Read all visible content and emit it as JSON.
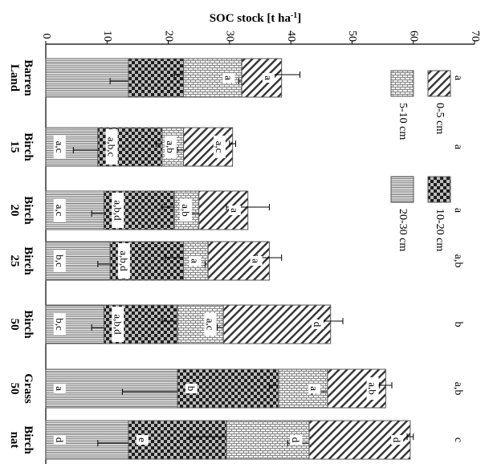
{
  "chart_data": {
    "type": "bar",
    "stacked": true,
    "orientation": "horizontal",
    "rotated_image": true,
    "xlabel": "SOC stock [t ha-1]",
    "xlabel_main": "SOC stock [t ha",
    "xlabel_sup": "-1",
    "xlabel_tail": "]",
    "xlim": [
      0,
      70
    ],
    "xticks": [
      "0",
      "10",
      "20",
      "30",
      "40",
      "50",
      "60",
      "70"
    ],
    "categories": [
      {
        "line1": "Barren",
        "line2": "Land"
      },
      {
        "line1": "Birch",
        "line2": "15"
      },
      {
        "line1": "Birch",
        "line2": "20"
      },
      {
        "line1": "Birch",
        "line2": "25"
      },
      {
        "line1": "Birch",
        "line2": "50"
      },
      {
        "line1": "Grass",
        "line2": "50"
      },
      {
        "line1": "Birch",
        "line2": "nat"
      }
    ],
    "total_letters": [
      "a",
      "a",
      "a",
      "a,b",
      "b",
      "a,b",
      "c"
    ],
    "series": [
      {
        "name": "20-30 cm",
        "pattern": "vertical-lines",
        "values": [
          13.5,
          8.5,
          9.5,
          10.5,
          9.5,
          21.5,
          13.5
        ],
        "errors": [
          3.0,
          4.0,
          2.0,
          2.0,
          2.0,
          9.0,
          5.0
        ],
        "letters": [
          "",
          "a,c",
          "a,c",
          "b,c",
          "b,c",
          "a",
          "d"
        ]
      },
      {
        "name": "10-20 cm",
        "pattern": "checker",
        "values": [
          9.0,
          10.5,
          11.5,
          12.0,
          12.0,
          16.5,
          16.0
        ],
        "errors": [
          1.5,
          1.0,
          2.0,
          3.0,
          2.5,
          1.5,
          6.0
        ],
        "letters": [
          "",
          "a,b,c",
          "a,b,d",
          "a,b,d",
          "a,b,d",
          "b",
          "e"
        ]
      },
      {
        "name": "5-10 cm",
        "pattern": "brick",
        "values": [
          9.5,
          3.5,
          4.0,
          4.0,
          7.5,
          8.0,
          13.5
        ],
        "errors": [
          0.5,
          1.0,
          2.0,
          0.5,
          1.0,
          2.5,
          3.5
        ],
        "letters": [
          "a",
          "a,b",
          "a,b",
          "a",
          "a,c",
          "a",
          "d"
        ]
      },
      {
        "name": "0-5 cm",
        "pattern": "diagonal",
        "values": [
          6.5,
          8.0,
          8.0,
          10.0,
          17.5,
          9.5,
          16.5
        ],
        "errors": [
          3.0,
          0.5,
          3.5,
          2.0,
          2.0,
          1.0,
          0.5
        ],
        "letters": [
          "a",
          "a,c",
          "a",
          "a",
          "d",
          "a,b",
          "d"
        ]
      }
    ],
    "legend_position": "top-right",
    "grid": false
  }
}
